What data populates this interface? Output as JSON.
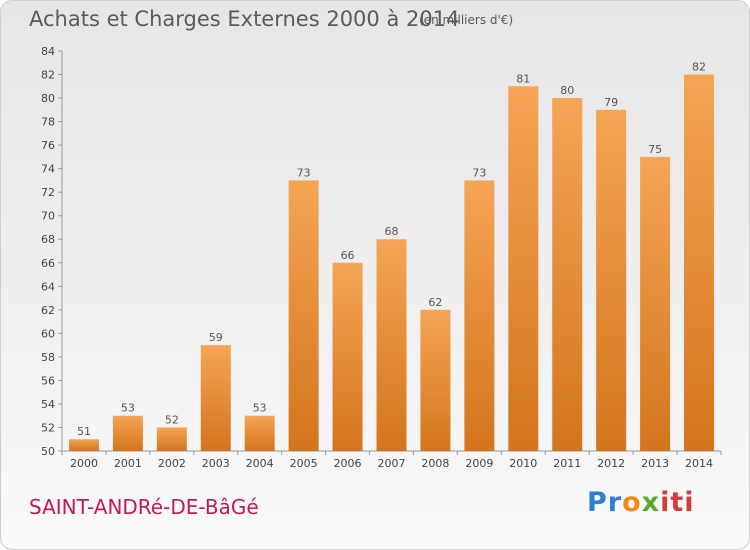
{
  "title": "Achats et Charges Externes 2000 à 2014",
  "subtitle": "(en milliers d'€)",
  "commune": "SAINT-ANDRé-DE-BâGé",
  "logo": [
    "Pr",
    "o",
    "x",
    "iti"
  ],
  "colors": {
    "bar": "#ef9b47",
    "bar_dark": "#d97a22",
    "title": "#5a5a5a",
    "commune": "#c2185b"
  },
  "chart_data": {
    "type": "bar",
    "categories": [
      "2000",
      "2001",
      "2002",
      "2003",
      "2004",
      "2005",
      "2006",
      "2007",
      "2008",
      "2009",
      "2010",
      "2011",
      "2012",
      "2013",
      "2014"
    ],
    "values": [
      51,
      53,
      52,
      59,
      53,
      73,
      66,
      68,
      62,
      73,
      81,
      80,
      79,
      75,
      82
    ],
    "ylim": [
      50,
      84
    ],
    "yticks": [
      50,
      52,
      54,
      56,
      58,
      60,
      62,
      64,
      66,
      68,
      70,
      72,
      74,
      76,
      78,
      80,
      82,
      84
    ],
    "grid": false,
    "data_labels": true
  }
}
